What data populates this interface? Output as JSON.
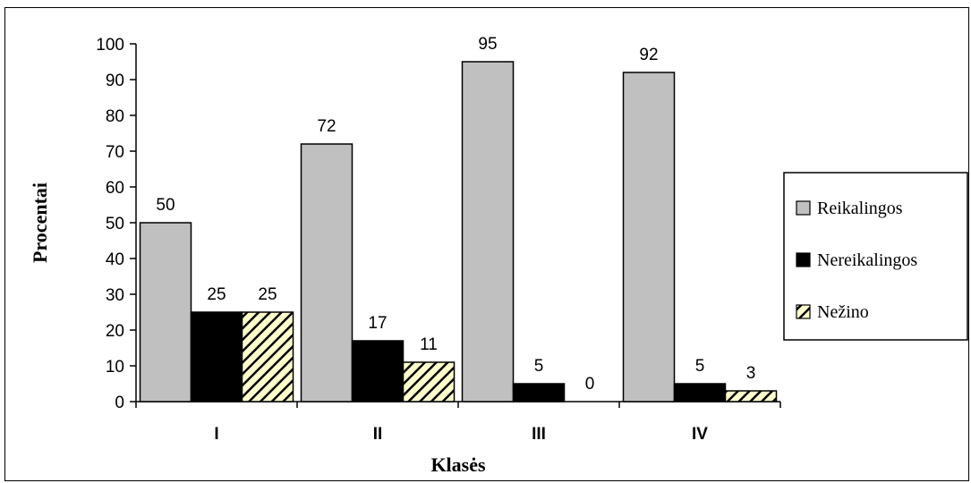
{
  "chart_data": {
    "type": "bar",
    "categories": [
      "I",
      "II",
      "III",
      "IV"
    ],
    "series": [
      {
        "name": "Reikalingos",
        "values": [
          50,
          72,
          95,
          92
        ],
        "color": "#c0c0c0",
        "pattern": "solid"
      },
      {
        "name": "Nereikalingos",
        "values": [
          25,
          17,
          5,
          5
        ],
        "color": "#000000",
        "pattern": "solid"
      },
      {
        "name": "Nežino",
        "values": [
          25,
          11,
          0,
          3
        ],
        "color": "#ffffcc",
        "pattern": "diagonal-hatch"
      }
    ],
    "xlabel": "Klasės",
    "ylabel": "Procentai",
    "ylim": [
      0,
      100
    ],
    "yticks": [
      0,
      10,
      20,
      30,
      40,
      50,
      60,
      70,
      80,
      90,
      100
    ],
    "grid": false,
    "legend": "right",
    "data_labels": true
  }
}
